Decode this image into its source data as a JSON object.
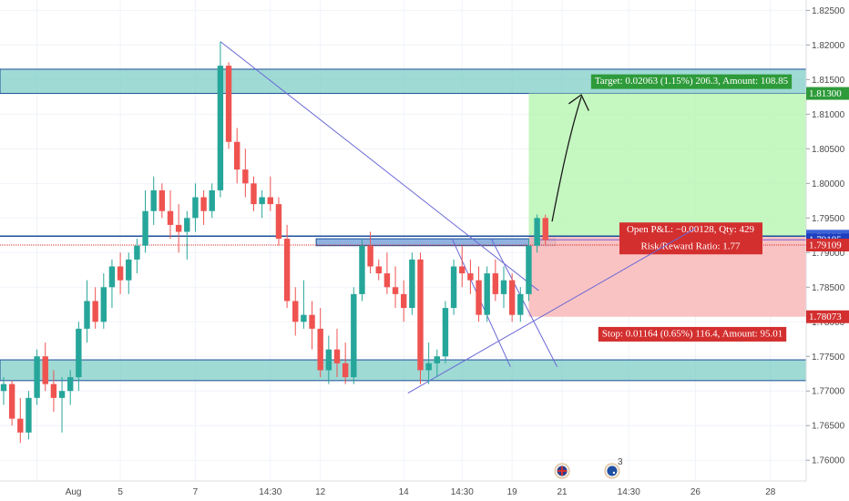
{
  "colors": {
    "up": "#26a69a",
    "down": "#ef5350",
    "zone_fill": "#7fcdc7",
    "zone_stroke": "#1e4f9a",
    "trendline": "#6a68d6",
    "target_fill": "#b7f5b0",
    "stop_fill": "#f9b9b9",
    "target_tag": "#2e9b3a",
    "stop_tag": "#d32f2f",
    "entry_tag": "#1e3fbf",
    "arrow": "#1a1a1a",
    "grid": "#f0f3fa"
  },
  "y_axis": {
    "labels": [
      "1.82500",
      "1.82000",
      "1.81500",
      "1.81000",
      "1.80500",
      "1.80000",
      "1.79500",
      "1.79000",
      "1.78500",
      "1.78000",
      "1.77500",
      "1.77000",
      "1.76500",
      "1.76000"
    ],
    "values": [
      1.825,
      1.82,
      1.815,
      1.81,
      1.805,
      1.8,
      1.795,
      1.79,
      1.785,
      1.78,
      1.775,
      1.77,
      1.765,
      1.76
    ]
  },
  "x_axis": {
    "labels": [
      "Aug",
      "5",
      "7",
      "14:30",
      "12",
      "14",
      "14:30",
      "19",
      "21",
      "14:30",
      "26",
      "28"
    ],
    "bars": [
      4,
      14,
      23,
      32,
      38,
      48,
      55,
      61,
      67,
      75,
      83,
      92
    ]
  },
  "price_tags": [
    {
      "label": "1.81300",
      "value": 1.813,
      "style": "green"
    },
    {
      "label": "1.79237",
      "value": 1.79237,
      "style": "blue"
    },
    {
      "label": "1.79185",
      "value": 1.79185,
      "style": "navy"
    },
    {
      "label": "1.79109",
      "value": 1.79109,
      "style": "red"
    },
    {
      "label": "1.78073",
      "value": 1.78073,
      "style": "red"
    }
  ],
  "position": {
    "target_text": "Target: 0.02063 (1.15%) 206.3, Amount: 108.85",
    "pnl_text": "Open P&L: −0.00128, Qty: 429",
    "rr_text": "Risk/Reward Ratio: 1.77",
    "stop_text": "Stop: 0.01164 (0.65%) 116.4, Amount: 95.01",
    "entry": 1.79237,
    "target": 1.813,
    "stop": 1.78073,
    "start_bar": 63
  },
  "zones": [
    {
      "top": 1.8165,
      "bottom": 1.813
    },
    {
      "top": 1.7745,
      "bottom": 1.7715
    },
    {
      "top": 1.792,
      "bottom": 1.791
    }
  ],
  "event_icons": [
    {
      "name": "uk-flag-icon",
      "bar": 67
    },
    {
      "name": "au-flag-icon",
      "bar": 73,
      "count": "3"
    }
  ],
  "chart_data": {
    "type": "candlestick",
    "symbol_pair_scale": "price",
    "ylim": [
      1.757,
      1.8265
    ],
    "candles": [
      [
        1.77,
        1.772,
        1.768,
        1.771
      ],
      [
        1.771,
        1.7715,
        1.765,
        1.766
      ],
      [
        1.766,
        1.769,
        1.7625,
        1.764
      ],
      [
        1.764,
        1.77,
        1.763,
        1.769
      ],
      [
        1.769,
        1.776,
        1.768,
        1.775
      ],
      [
        1.775,
        1.777,
        1.77,
        1.771
      ],
      [
        1.771,
        1.773,
        1.767,
        1.769
      ],
      [
        1.769,
        1.772,
        1.764,
        1.77
      ],
      [
        1.77,
        1.773,
        1.768,
        1.772
      ],
      [
        1.772,
        1.78,
        1.77,
        1.779
      ],
      [
        1.779,
        1.786,
        1.777,
        1.783
      ],
      [
        1.783,
        1.785,
        1.779,
        1.78
      ],
      [
        1.78,
        1.787,
        1.779,
        1.785
      ],
      [
        1.785,
        1.789,
        1.782,
        1.788
      ],
      [
        1.788,
        1.79,
        1.784,
        1.786
      ],
      [
        1.786,
        1.79,
        1.784,
        1.789
      ],
      [
        1.789,
        1.792,
        1.787,
        1.791
      ],
      [
        1.791,
        1.799,
        1.79,
        1.796
      ],
      [
        1.796,
        1.801,
        1.794,
        1.799
      ],
      [
        1.799,
        1.8,
        1.795,
        1.796
      ],
      [
        1.796,
        1.799,
        1.792,
        1.794
      ],
      [
        1.794,
        1.797,
        1.79,
        1.793
      ],
      [
        1.793,
        1.796,
        1.789,
        1.795
      ],
      [
        1.795,
        1.8,
        1.793,
        1.798
      ],
      [
        1.798,
        1.799,
        1.794,
        1.796
      ],
      [
        1.796,
        1.8,
        1.795,
        1.799
      ],
      [
        1.799,
        1.8205,
        1.798,
        1.817
      ],
      [
        1.817,
        1.8175,
        1.805,
        1.806
      ],
      [
        1.806,
        1.808,
        1.8,
        1.802
      ],
      [
        1.802,
        1.805,
        1.798,
        1.8
      ],
      [
        1.8,
        1.801,
        1.796,
        1.797
      ],
      [
        1.797,
        1.799,
        1.795,
        1.798
      ],
      [
        1.798,
        1.801,
        1.796,
        1.797
      ],
      [
        1.797,
        1.798,
        1.791,
        1.792
      ],
      [
        1.792,
        1.794,
        1.782,
        1.783
      ],
      [
        1.783,
        1.785,
        1.778,
        1.78
      ],
      [
        1.78,
        1.786,
        1.779,
        1.781
      ],
      [
        1.781,
        1.783,
        1.776,
        1.779
      ],
      [
        1.779,
        1.782,
        1.772,
        1.773
      ],
      [
        1.773,
        1.778,
        1.771,
        1.776
      ],
      [
        1.776,
        1.779,
        1.772,
        1.774
      ],
      [
        1.774,
        1.777,
        1.771,
        1.772
      ],
      [
        1.772,
        1.785,
        1.771,
        1.784
      ],
      [
        1.784,
        1.792,
        1.783,
        1.791
      ],
      [
        1.791,
        1.793,
        1.787,
        1.788
      ],
      [
        1.788,
        1.789,
        1.786,
        1.787
      ],
      [
        1.787,
        1.79,
        1.784,
        1.785
      ],
      [
        1.785,
        1.788,
        1.782,
        1.784
      ],
      [
        1.784,
        1.786,
        1.78,
        1.782
      ],
      [
        1.782,
        1.79,
        1.781,
        1.789
      ],
      [
        1.789,
        1.79,
        1.771,
        1.773
      ],
      [
        1.773,
        1.777,
        1.771,
        1.774
      ],
      [
        1.774,
        1.776,
        1.772,
        1.775
      ],
      [
        1.775,
        1.783,
        1.774,
        1.782
      ],
      [
        1.782,
        1.789,
        1.781,
        1.788
      ],
      [
        1.788,
        1.791,
        1.785,
        1.787
      ],
      [
        1.787,
        1.789,
        1.784,
        1.786
      ],
      [
        1.786,
        1.788,
        1.78,
        1.781
      ],
      [
        1.781,
        1.788,
        1.78,
        1.787
      ],
      [
        1.787,
        1.789,
        1.783,
        1.784
      ],
      [
        1.784,
        1.788,
        1.782,
        1.786
      ],
      [
        1.786,
        1.787,
        1.78,
        1.781
      ],
      [
        1.781,
        1.785,
        1.78,
        1.784
      ],
      [
        1.784,
        1.792,
        1.783,
        1.791
      ],
      [
        1.791,
        1.7955,
        1.79,
        1.795
      ],
      [
        1.795,
        1.7955,
        1.791,
        1.7918
      ]
    ]
  }
}
